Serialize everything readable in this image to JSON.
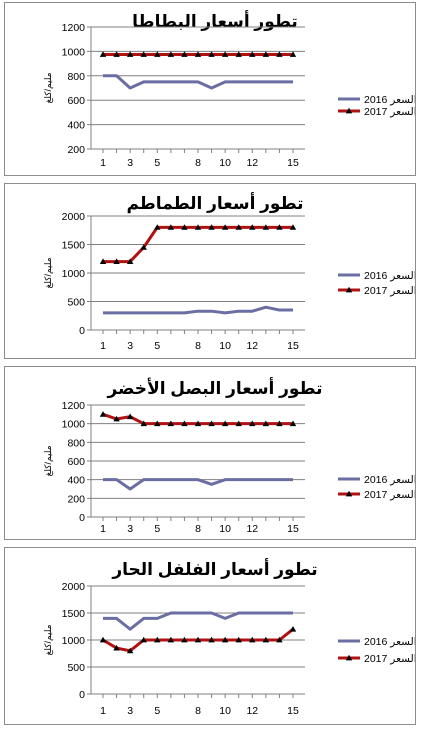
{
  "colors": {
    "series_2016": "#6b6ea3",
    "series_2017": "#b31010",
    "axis": "#808080"
  },
  "chart_data": [
    {
      "type": "line",
      "title": "تطور أسعار البطاطا",
      "ylabel": "مليم/كلغ",
      "ylim": [
        200,
        1200
      ],
      "yticks": [
        200,
        400,
        600,
        800,
        1000,
        1200
      ],
      "x": [
        1,
        2,
        3,
        4,
        5,
        6,
        7,
        8,
        9,
        10,
        11,
        12,
        13,
        14,
        15
      ],
      "xtick_labels": [
        "1",
        "3",
        "5",
        "8",
        "10",
        "12",
        "15"
      ],
      "legend": [
        "2016 السعر",
        "2017 السعر"
      ],
      "series": [
        {
          "values": [
            800,
            800,
            700,
            750,
            750,
            750,
            750,
            750,
            700,
            750,
            750,
            750,
            750,
            750,
            750
          ]
        },
        {
          "values": [
            975,
            975,
            975,
            975,
            975,
            975,
            975,
            975,
            975,
            975,
            975,
            975,
            975,
            975,
            975
          ]
        }
      ]
    },
    {
      "type": "line",
      "title": "تطور أسعار الطماطم",
      "ylabel": "مليم/كلغ",
      "ylim": [
        0,
        2000
      ],
      "yticks": [
        0,
        500,
        1000,
        1500,
        2000
      ],
      "x": [
        1,
        2,
        3,
        4,
        5,
        6,
        7,
        8,
        9,
        10,
        11,
        12,
        13,
        14,
        15
      ],
      "xtick_labels": [
        "1",
        "3",
        "5",
        "8",
        "10",
        "12",
        "15"
      ],
      "legend": [
        "2016 السعر",
        "2017 السعر"
      ],
      "series": [
        {
          "values": [
            300,
            300,
            300,
            300,
            300,
            300,
            300,
            330,
            330,
            300,
            330,
            330,
            400,
            350,
            350
          ]
        },
        {
          "values": [
            1200,
            1200,
            1200,
            1450,
            1800,
            1800,
            1800,
            1800,
            1800,
            1800,
            1800,
            1800,
            1800,
            1800,
            1800
          ]
        }
      ]
    },
    {
      "type": "line",
      "title": "تطور أسعار البصل الأخضر",
      "ylabel": "مليم/كلغ",
      "ylim": [
        0,
        1200
      ],
      "yticks": [
        0,
        200,
        400,
        600,
        800,
        1000,
        1200
      ],
      "x": [
        1,
        2,
        3,
        4,
        5,
        6,
        7,
        8,
        9,
        10,
        11,
        12,
        13,
        14,
        15
      ],
      "xtick_labels": [
        "1",
        "3",
        "5",
        "8",
        "10",
        "12",
        "15"
      ],
      "legend": [
        "2016 السعر",
        "2017 السعر"
      ],
      "series": [
        {
          "values": [
            400,
            400,
            300,
            400,
            400,
            400,
            400,
            400,
            350,
            400,
            400,
            400,
            400,
            400,
            400
          ]
        },
        {
          "values": [
            1100,
            1050,
            1075,
            1000,
            1000,
            1000,
            1000,
            1000,
            1000,
            1000,
            1000,
            1000,
            1000,
            1000,
            1000
          ]
        }
      ]
    },
    {
      "type": "line",
      "title": "تطور أسعار الفلفل الحار",
      "ylabel": "مليم/كلغ",
      "ylim": [
        0,
        2000
      ],
      "yticks": [
        0,
        500,
        1000,
        1500,
        2000
      ],
      "x": [
        1,
        2,
        3,
        4,
        5,
        6,
        7,
        8,
        9,
        10,
        11,
        12,
        13,
        14,
        15
      ],
      "xtick_labels": [
        "1",
        "3",
        "5",
        "8",
        "10",
        "12",
        "15"
      ],
      "legend": [
        "2016 السعر",
        "2017 السعر"
      ],
      "series": [
        {
          "values": [
            1400,
            1400,
            1200,
            1400,
            1400,
            1500,
            1500,
            1500,
            1500,
            1400,
            1500,
            1500,
            1500,
            1500,
            1500
          ]
        },
        {
          "values": [
            1000,
            850,
            800,
            1000,
            1000,
            1000,
            1000,
            1000,
            1000,
            1000,
            1000,
            1000,
            1000,
            1000,
            1200
          ]
        }
      ]
    }
  ]
}
